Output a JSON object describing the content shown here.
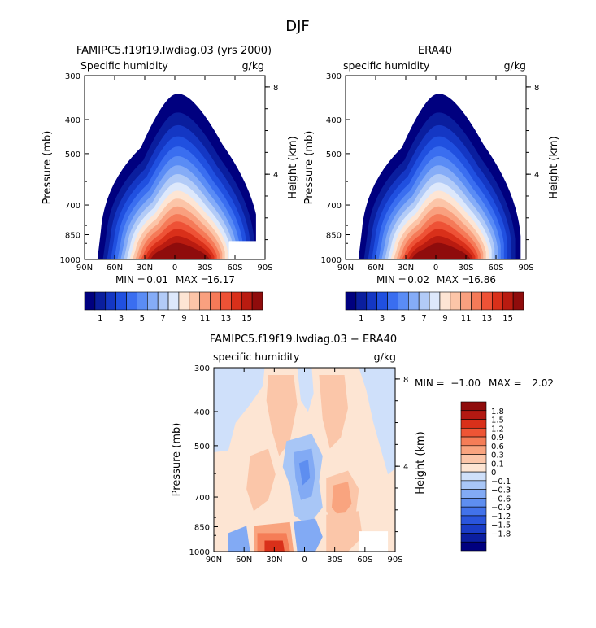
{
  "figure_title": "DJF",
  "colors": {
    "abs_scale": [
      "#00007f",
      "#0a1e9e",
      "#1437c4",
      "#2050e0",
      "#3a6ef0",
      "#5a8cf5",
      "#85acf7",
      "#b2cbf7",
      "#dde8fb",
      "#fde5d4",
      "#fcc5a8",
      "#f9a07f",
      "#f57a58",
      "#ee5236",
      "#d9301a",
      "#b91b10",
      "#8f0c0c"
    ],
    "diff_scale": [
      "#00007f",
      "#0b1ea0",
      "#1a3cc6",
      "#2a55dc",
      "#4272ea",
      "#5e8ef0",
      "#82aaf4",
      "#a8c6f6",
      "#cfe0fa",
      "#fde5d3",
      "#fbc6a9",
      "#f9a47f",
      "#f57d57",
      "#ee5535",
      "#d9301a",
      "#b31912",
      "#8f0c0c"
    ]
  },
  "chart_data": [
    {
      "type": "heatmap",
      "title": "FAMIPC5.f19f19.lwdiag.03 (yrs 2000)",
      "subtitle_left": "Specific humidity",
      "subtitle_right": "g/kg",
      "xlabel": "",
      "ylabel": "Pressure (mb)",
      "y2label": "Height (km)",
      "x_ticks": [
        "90N",
        "60N",
        "30N",
        "0",
        "30S",
        "60S",
        "90S"
      ],
      "y_ticks": [
        "300",
        "400",
        "500",
        "700",
        "850",
        "1000"
      ],
      "y2_ticks": [
        "8",
        "4"
      ],
      "min_label": "MIN =",
      "min_value": "0.01",
      "max_label": "MAX =",
      "max_value": "16.17",
      "colorbar_labels": [
        "1",
        "3",
        "5",
        "7",
        "9",
        "11",
        "13",
        "15"
      ]
    },
    {
      "type": "heatmap",
      "title": "ERA40",
      "subtitle_left": "specific humidity",
      "subtitle_right": "g/kg",
      "xlabel": "",
      "ylabel": "Pressure (mb)",
      "y2label": "Height (km)",
      "x_ticks": [
        "90N",
        "60N",
        "30N",
        "0",
        "30S",
        "60S",
        "90S"
      ],
      "y_ticks": [
        "300",
        "400",
        "500",
        "700",
        "850",
        "1000"
      ],
      "y2_ticks": [
        "8",
        "4"
      ],
      "min_label": "MIN =",
      "min_value": "0.02",
      "max_label": "MAX =",
      "max_value": "16.86",
      "colorbar_labels": [
        "1",
        "3",
        "5",
        "7",
        "9",
        "11",
        "13",
        "15"
      ]
    },
    {
      "type": "heatmap",
      "title": "FAMIPC5.f19f19.lwdiag.03 − ERA40",
      "subtitle_left": "specific humidity",
      "subtitle_right": "g/kg",
      "xlabel": "",
      "ylabel": "Pressure (mb)",
      "y2label": "Height (km)",
      "x_ticks": [
        "90N",
        "60N",
        "30N",
        "0",
        "30S",
        "60S",
        "90S"
      ],
      "y_ticks": [
        "300",
        "400",
        "500",
        "700",
        "850",
        "1000"
      ],
      "y2_ticks": [
        "8",
        "4"
      ],
      "min_label": "MIN =",
      "min_value": "−1.00",
      "max_label": "MAX =",
      "max_value": "2.02",
      "colorbar_labels": [
        "1.8",
        "1.5",
        "1.2",
        "0.9",
        "0.6",
        "0.3",
        "0.1",
        "0",
        "−0.1",
        "−0.3",
        "−0.6",
        "−0.9",
        "−1.2",
        "−1.5",
        "−1.8"
      ]
    }
  ]
}
